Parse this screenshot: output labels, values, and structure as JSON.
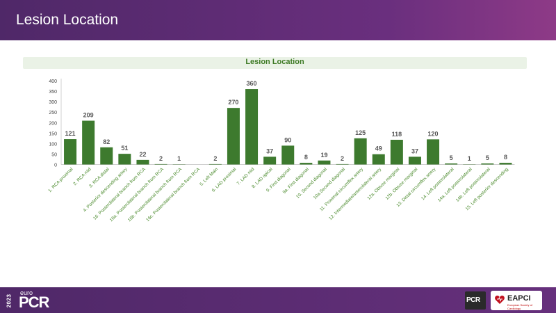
{
  "header": {
    "title": "Lesion Location"
  },
  "chart_data": {
    "type": "bar",
    "title": "Lesion Location",
    "xlabel": "",
    "ylabel": "",
    "ylim": [
      0,
      400
    ],
    "yticks": [
      0,
      50,
      100,
      150,
      200,
      250,
      300,
      350,
      400
    ],
    "grid": false,
    "legend": "none",
    "bar_color": "#3d7a2e",
    "categories": [
      "1. RCA proximal",
      "2. RCA mid",
      "3. RCA distal",
      "4. Posterior descending artery",
      "16. Posterolateral branch from RCA",
      "16a. Posterolateral branch from RCA",
      "16b. Posterolateral branch from RCA",
      "16c. Posterolateral branch from RCA",
      "5. Left Main",
      "6. LAD proximal",
      "7. LAD mid",
      "8. LAD apical",
      "9. First diagonal",
      "9a. First diagonal",
      "10. Second diagonal",
      "10a.Second diagonal",
      "11. Proximal circumflex artery",
      "12. Intermediate/anterolateral artery",
      "12a. Obtuse marginal",
      "12b. Obtuse marginal",
      "13. Distal circumflex artery",
      "14. Left posterolateral",
      "14a. Left posterolateral",
      "14b. Left posterolateral",
      "15. Left posterior descending"
    ],
    "values": [
      121,
      209,
      82,
      51,
      22,
      2,
      1,
      0,
      2,
      270,
      360,
      37,
      90,
      8,
      19,
      2,
      125,
      49,
      118,
      37,
      120,
      5,
      1,
      5,
      8
    ],
    "labels": [
      "121",
      "209",
      "82",
      "51",
      "22",
      "2",
      "1",
      "",
      "2",
      "270",
      "360",
      "37",
      "90",
      "8",
      "19",
      "2",
      "125",
      "49",
      "118",
      "37",
      "120",
      "5",
      "1",
      "5",
      "8"
    ]
  },
  "footer": {
    "year": "2023",
    "euro": "euro",
    "pcr": "PCR",
    "pcr_logo": "PCR",
    "eapci": "EAPCI",
    "eapci_sub": "European Society of Cardiology"
  },
  "icons": {
    "eapci": "heart-icon"
  }
}
